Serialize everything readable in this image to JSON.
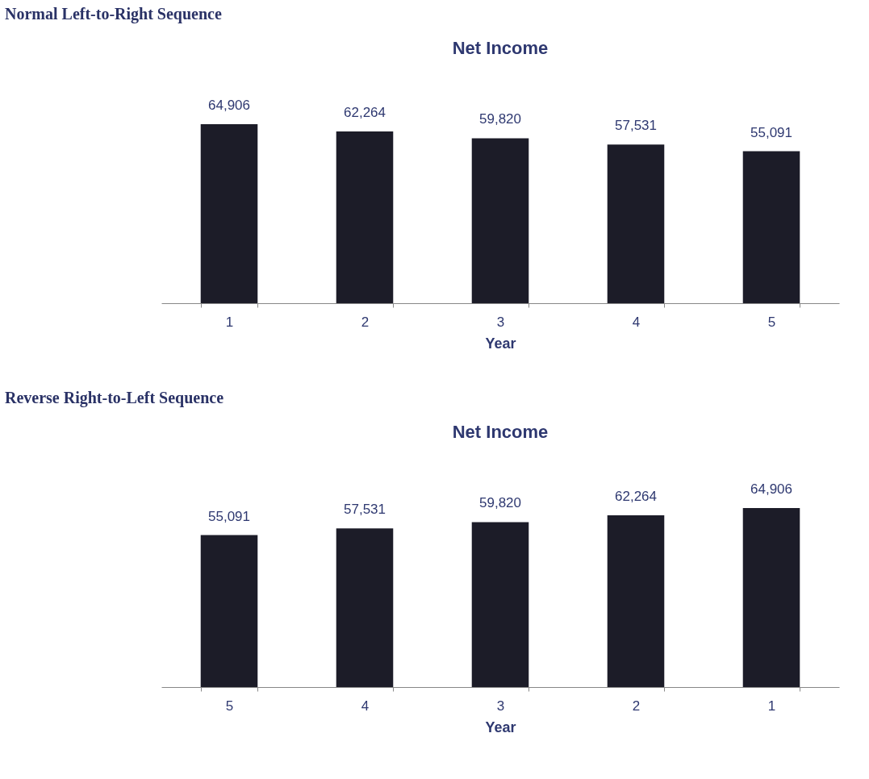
{
  "chart_data": [
    {
      "type": "bar",
      "annotations": [
        "Normal Left-to-Right Sequence"
      ],
      "title": "Net Income",
      "xlabel": "Year",
      "categories": [
        "1",
        "2",
        "3",
        "4",
        "5"
      ],
      "values": [
        64906,
        62264,
        59820,
        57531,
        55091
      ],
      "value_labels": [
        "64,906",
        "62,264",
        "59,820",
        "57,531",
        "55,091"
      ],
      "color": "#1c1c28"
    },
    {
      "type": "bar",
      "annotations": [
        "Reverse Right-to-Left Sequence"
      ],
      "title": "Net Income",
      "xlabel": "Year",
      "categories": [
        "5",
        "4",
        "3",
        "2",
        "1"
      ],
      "values": [
        55091,
        57531,
        59820,
        62264,
        64906
      ],
      "value_labels": [
        "55,091",
        "57,531",
        "59,820",
        "62,264",
        "64,906"
      ],
      "color": "#1c1c28"
    }
  ]
}
